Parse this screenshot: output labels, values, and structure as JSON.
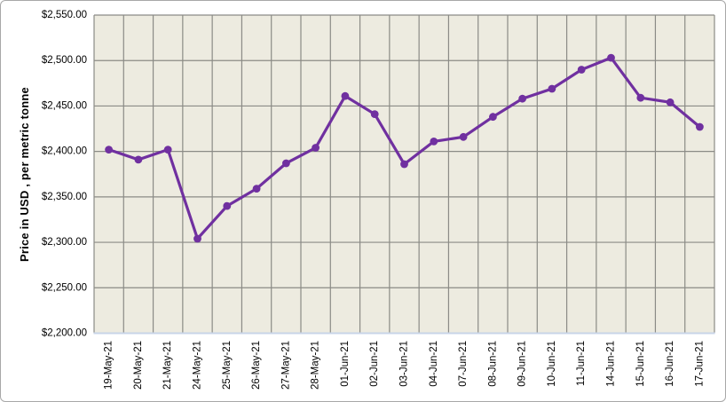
{
  "chart_data": {
    "type": "line",
    "title": "",
    "xlabel": "",
    "ylabel": "Price in USD , per metric tonne",
    "categories": [
      "19-May-21",
      "20-May-21",
      "21-May-21",
      "24-May-21",
      "25-May-21",
      "26-May-21",
      "27-May-21",
      "28-May-21",
      "01-Jun-21",
      "02-Jun-21",
      "03-Jun-21",
      "04-Jun-21",
      "07-Jun-21",
      "08-Jun-21",
      "09-Jun-21",
      "10-Jun-21",
      "11-Jun-21",
      "14-Jun-21",
      "15-Jun-21",
      "16-Jun-21",
      "17-Jun-21"
    ],
    "values": [
      2402,
      2391,
      2402,
      2304,
      2340,
      2359,
      2387,
      2404,
      2461,
      2441,
      2386,
      2411,
      2416,
      2438,
      2458,
      2469,
      2490,
      2503,
      2459,
      2454,
      2427
    ],
    "ylim": [
      2200,
      2550
    ],
    "y_ticks": [
      2200,
      2250,
      2300,
      2350,
      2400,
      2450,
      2500,
      2550
    ],
    "y_tick_labels": [
      "$2,200.00",
      "$2,250.00",
      "$2,300.00",
      "$2,350.00",
      "$2,400.00",
      "$2,450.00",
      "$2,500.00",
      "$2,550.00"
    ],
    "grid": true,
    "legend": "none",
    "marker": "circle",
    "colors": {
      "line": "#7030A0",
      "plot_background": "#EDEBE0",
      "gridline": "#8B8B86",
      "x_axis_line": "#C8D4E8",
      "chart_border": "#A8A8A8",
      "text": "#000000"
    }
  }
}
